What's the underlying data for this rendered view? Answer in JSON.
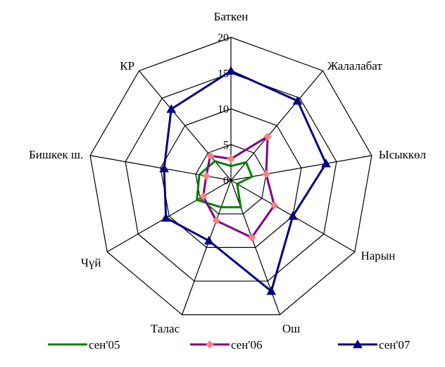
{
  "chart_data": {
    "type": "radar",
    "categories": [
      "Баткен",
      "Жалалабат",
      "Ысыккөл",
      "Нарын",
      "Ош",
      "Талас",
      "Чүй",
      "Бишкек ш.",
      "КР"
    ],
    "ticks": [
      0,
      5,
      10,
      15,
      20
    ],
    "rlim": [
      0,
      20
    ],
    "grid": true,
    "legend_position": "bottom",
    "series": [
      {
        "name": "сен'05",
        "color": "#008000",
        "marker": "none",
        "values": [
          2.0,
          3.3,
          3.0,
          1.0,
          4.0,
          4.0,
          5.5,
          4.5,
          3.5
        ]
      },
      {
        "name": "сен'06",
        "color": "#800080",
        "marker": "diamond",
        "values": [
          3.0,
          8.0,
          5.0,
          7.0,
          8.5,
          6.0,
          4.5,
          3.5,
          4.5
        ]
      },
      {
        "name": "сен'07",
        "color": "#000080",
        "marker": "triangle",
        "values": [
          15.3,
          14.5,
          13.5,
          10.0,
          16.5,
          9.0,
          10.5,
          9.5,
          13.0
        ]
      }
    ]
  }
}
